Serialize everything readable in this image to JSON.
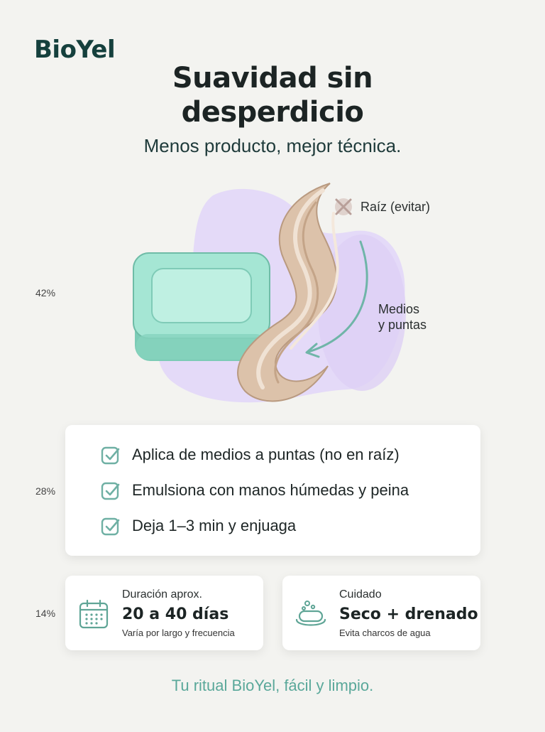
{
  "brand": "BioYel",
  "title_line1": "Suavidad sin",
  "title_line2": "desperdicio",
  "subtitle": "Menos producto, mejor técnica.",
  "side_labels": [
    "42%",
    "28%",
    "14%"
  ],
  "illustration": {
    "root_label": "Raíz (evitar)",
    "ends_label_line1": "Medios",
    "ends_label_line2": "y puntas"
  },
  "steps": [
    "Aplica de medios a puntas (no en raíz)",
    "Emulsiona con manos húmedas y peina",
    "Deja 1–3 min y enjuaga"
  ],
  "info": [
    {
      "icon": "calendar-icon",
      "label": "Duración aprox.",
      "value": "20 a 40 días",
      "note": "Varía por largo y frecuencia"
    },
    {
      "icon": "soap-dish-icon",
      "label": "Cuidado",
      "value": "Seco + drenado",
      "note": "Evita charcos de agua"
    }
  ],
  "footer": "Tu ritual BioYel, fácil y limpio.",
  "colors": {
    "accent": "#5aa89a",
    "brand": "#15403d",
    "soap": "#8fdcc8",
    "blob": "#e2d6f7",
    "hair": "#d9bfa6"
  }
}
